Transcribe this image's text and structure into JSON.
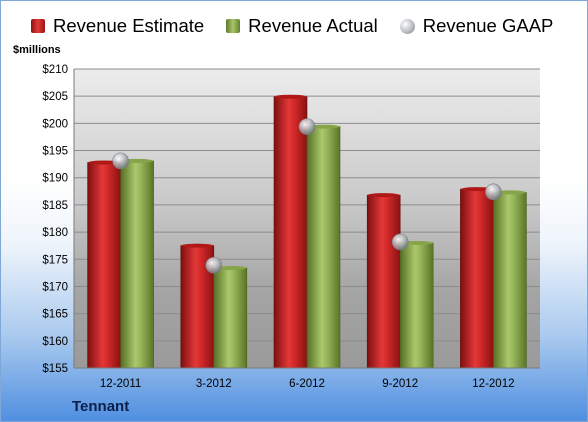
{
  "chart_data": {
    "type": "bar",
    "categories": [
      "12-2011",
      "3-2012",
      "6-2012",
      "9-2012",
      "12-2012"
    ],
    "series": [
      {
        "name": "Revenue Estimate",
        "values": [
          192.8,
          177.5,
          204.9,
          186.8,
          187.9
        ],
        "color": "#c41e1e",
        "kind": "bar"
      },
      {
        "name": "Revenue Actual",
        "values": [
          193.1,
          173.4,
          199.4,
          178.0,
          187.3
        ],
        "color": "#8fae4e",
        "kind": "bar"
      },
      {
        "name": "Revenue GAAP",
        "values": [
          193.1,
          173.9,
          199.4,
          178.2,
          187.4
        ],
        "color": "#b9bcc2",
        "kind": "marker"
      }
    ],
    "ylim": [
      155,
      210
    ],
    "yticks": [
      155,
      160,
      165,
      170,
      175,
      180,
      185,
      190,
      195,
      200,
      205,
      210
    ],
    "ytick_labels": [
      "$155",
      "$160",
      "$165",
      "$170",
      "$175",
      "$180",
      "$185",
      "$190",
      "$195",
      "$200",
      "$205",
      "$210"
    ],
    "ylabel": "$millions",
    "grid": true,
    "legend_position": "top"
  },
  "footer": {
    "company": "Tennant"
  }
}
